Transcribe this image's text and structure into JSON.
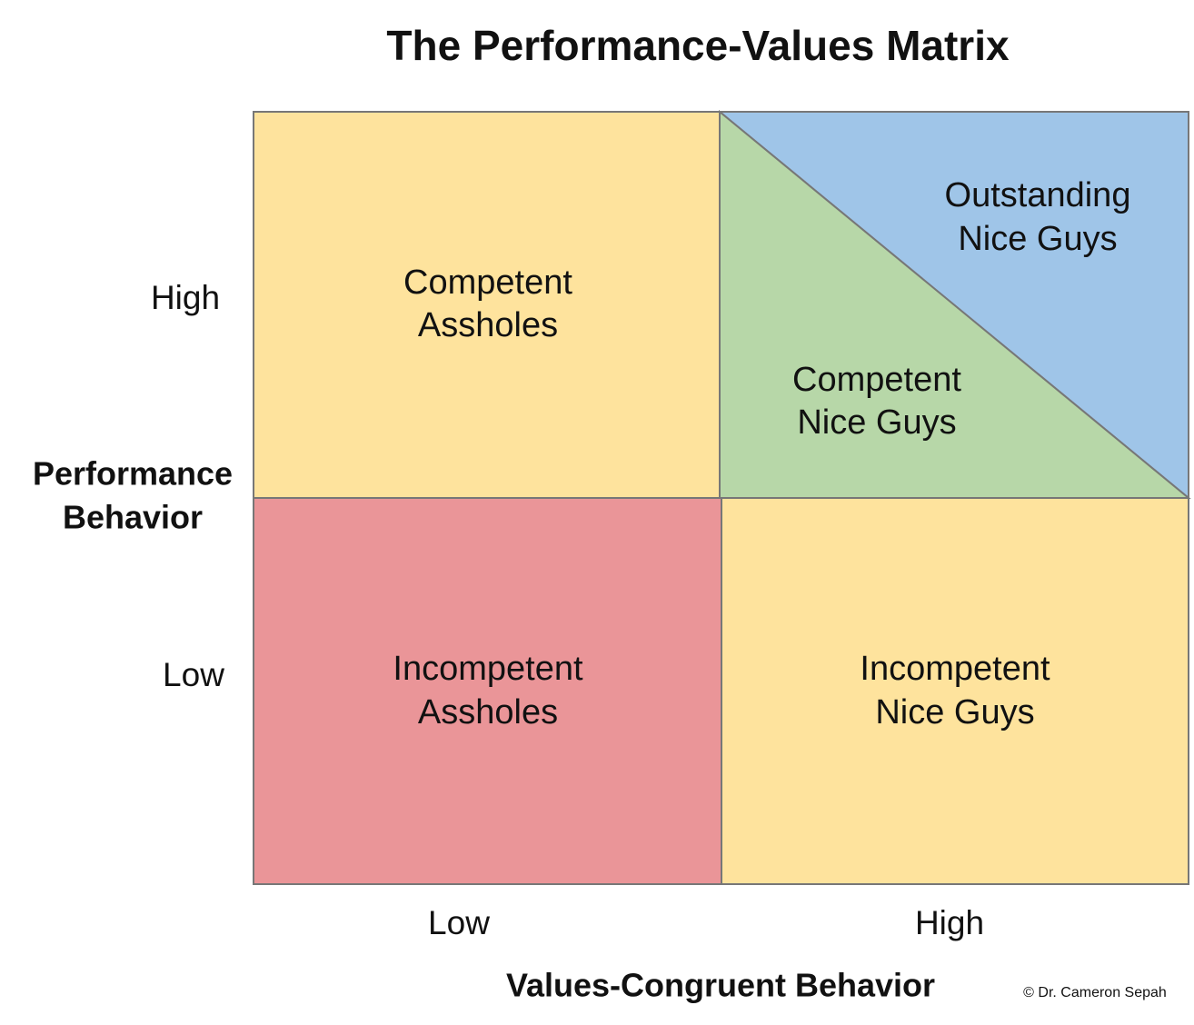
{
  "title": "The Performance-Values Matrix",
  "y_axis": {
    "label": [
      "Performance",
      "Behavior"
    ],
    "ticks": [
      "High",
      "Low"
    ]
  },
  "x_axis": {
    "label": "Values-Congruent Behavior",
    "ticks": [
      "Low",
      "High"
    ]
  },
  "quadrants": [
    {
      "label": [
        "Competent",
        "Assholes"
      ]
    },
    {
      "label": [
        "Outstanding",
        "Nice Guys"
      ]
    },
    {
      "label": [
        "Competent",
        "Nice Guys"
      ]
    },
    {
      "label": [
        "Incompetent",
        "Assholes"
      ]
    },
    {
      "label": [
        "Incompetent",
        "Nice Guys"
      ]
    }
  ],
  "credit": "© Dr. Cameron Sepah"
}
